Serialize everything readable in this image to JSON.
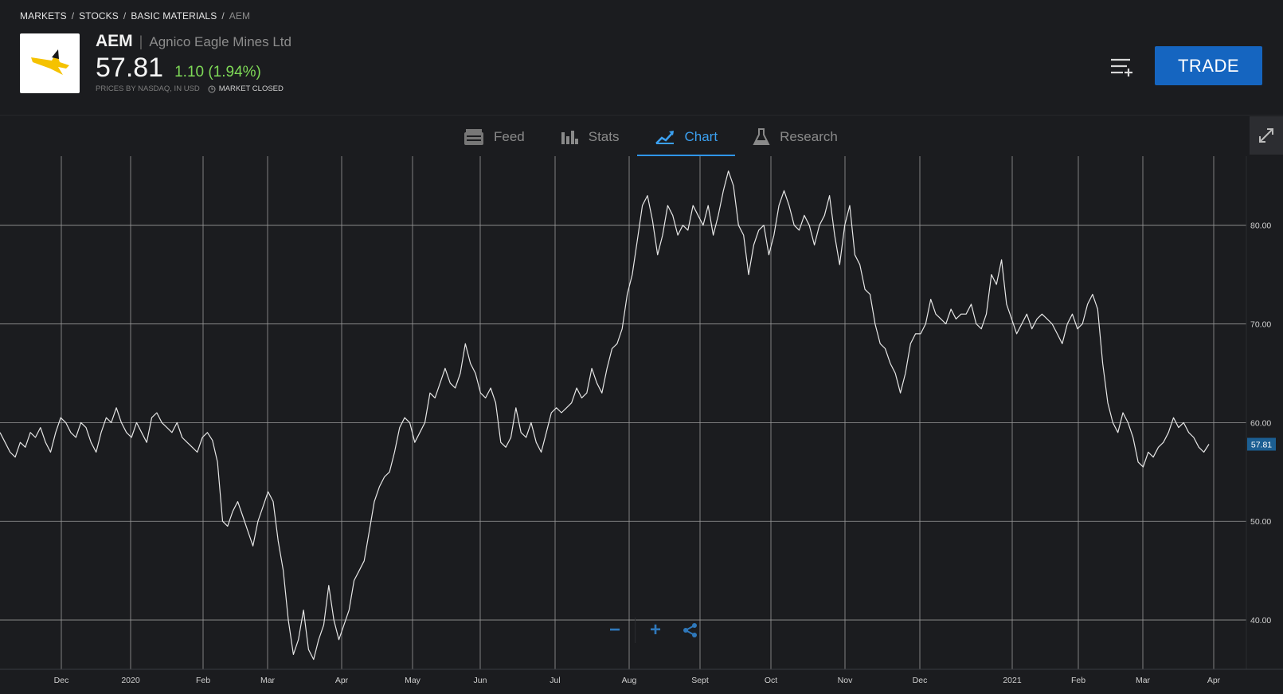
{
  "breadcrumb": [
    "MARKETS",
    "STOCKS",
    "BASIC MATERIALS",
    "AEM"
  ],
  "header": {
    "ticker": "AEM",
    "company": "Agnico Eagle Mines Ltd",
    "price": "57.81",
    "change": "1.10 (1.94%)",
    "source_note": "PRICES BY NASDAQ, IN USD",
    "market_status": "MARKET CLOSED",
    "trade_label": "TRADE",
    "logo_icon": "eagle-logo-icon",
    "colors": {
      "positive": "#7ed957",
      "accent": "#2f95e8",
      "trade": "#1565c0"
    }
  },
  "tabs": [
    {
      "label": "Feed",
      "icon": "feed-icon",
      "active": false
    },
    {
      "label": "Stats",
      "icon": "bar-chart-icon",
      "active": false
    },
    {
      "label": "Chart",
      "icon": "trend-chart-icon",
      "active": true
    },
    {
      "label": "Research",
      "icon": "flask-icon",
      "active": false
    }
  ],
  "chart_data": {
    "type": "line",
    "x_ticks": [
      "Dec",
      "2020",
      "Feb",
      "Mar",
      "Apr",
      "May",
      "Jun",
      "Jul",
      "Aug",
      "Sept",
      "Oct",
      "Nov",
      "Dec",
      "2021",
      "Feb",
      "Mar",
      "Apr"
    ],
    "y_ticks": [
      "40.00",
      "50.00",
      "60.00",
      "70.00",
      "80.00"
    ],
    "ylim": [
      35,
      87
    ],
    "last_value_label": "57.81",
    "grid": true,
    "series": [
      {
        "values": [
          59,
          58,
          57,
          56.5,
          58,
          57.5,
          59,
          58.5,
          59.5,
          58,
          57,
          59,
          60.5,
          60,
          59,
          58.5,
          60,
          59.5,
          58,
          57,
          59,
          60.5,
          60,
          61.5,
          60,
          59,
          58.5,
          60,
          59,
          58,
          60.5,
          61,
          60,
          59.5,
          59,
          60,
          58.5,
          58,
          57.5,
          57,
          58.5,
          59,
          58.2,
          56,
          50,
          49.5,
          51,
          52,
          50.5,
          49,
          47.5,
          50,
          51.5,
          53,
          52,
          48,
          45,
          40,
          36.5,
          38,
          41,
          37,
          36,
          38,
          39.5,
          43.5,
          40,
          38,
          39.5,
          41,
          44,
          45,
          46,
          49,
          52,
          53.5,
          54.5,
          55,
          57,
          59.5,
          60.5,
          60,
          58,
          59,
          60,
          63,
          62.5,
          64,
          65.5,
          64,
          63.5,
          65,
          68,
          66,
          65,
          63,
          62.5,
          63.5,
          62,
          58,
          57.5,
          58.5,
          61.5,
          59,
          58.5,
          60,
          58,
          57,
          59,
          61,
          61.5,
          61,
          61.5,
          62,
          63.5,
          62.5,
          63,
          65.5,
          64,
          63,
          65.5,
          67.5,
          68,
          69.5,
          73,
          75,
          78.5,
          82,
          83,
          80.5,
          77,
          79,
          82,
          81,
          79,
          80,
          79.5,
          82,
          81,
          80,
          82,
          79,
          81,
          83.5,
          85.5,
          84,
          80,
          79,
          75,
          78,
          79.5,
          80,
          77,
          79,
          82,
          83.5,
          82,
          80,
          79.5,
          81,
          80,
          78,
          80,
          81,
          83,
          79,
          76,
          80,
          82,
          77,
          76,
          73.5,
          73,
          70,
          68,
          67.5,
          66,
          65,
          63,
          65,
          68,
          69,
          69,
          70,
          72.5,
          71,
          70.5,
          70,
          71.5,
          70.5,
          71,
          71,
          72,
          70,
          69.5,
          71,
          75,
          74,
          76.5,
          72,
          70.5,
          69,
          70,
          71,
          69.5,
          70.5,
          71,
          70.5,
          70,
          69,
          68,
          70,
          71,
          69.5,
          70,
          72,
          73,
          71.5,
          66,
          62,
          60,
          59,
          61,
          60,
          58.5,
          56,
          55.5,
          57,
          56.5,
          57.5,
          58,
          59,
          60.5,
          59.5,
          60,
          59,
          58.5,
          57.5,
          57,
          57.81
        ]
      }
    ]
  },
  "controls": {
    "zoom_out_icon": "minus-icon",
    "zoom_in_icon": "plus-icon",
    "share_icon": "share-icon"
  }
}
